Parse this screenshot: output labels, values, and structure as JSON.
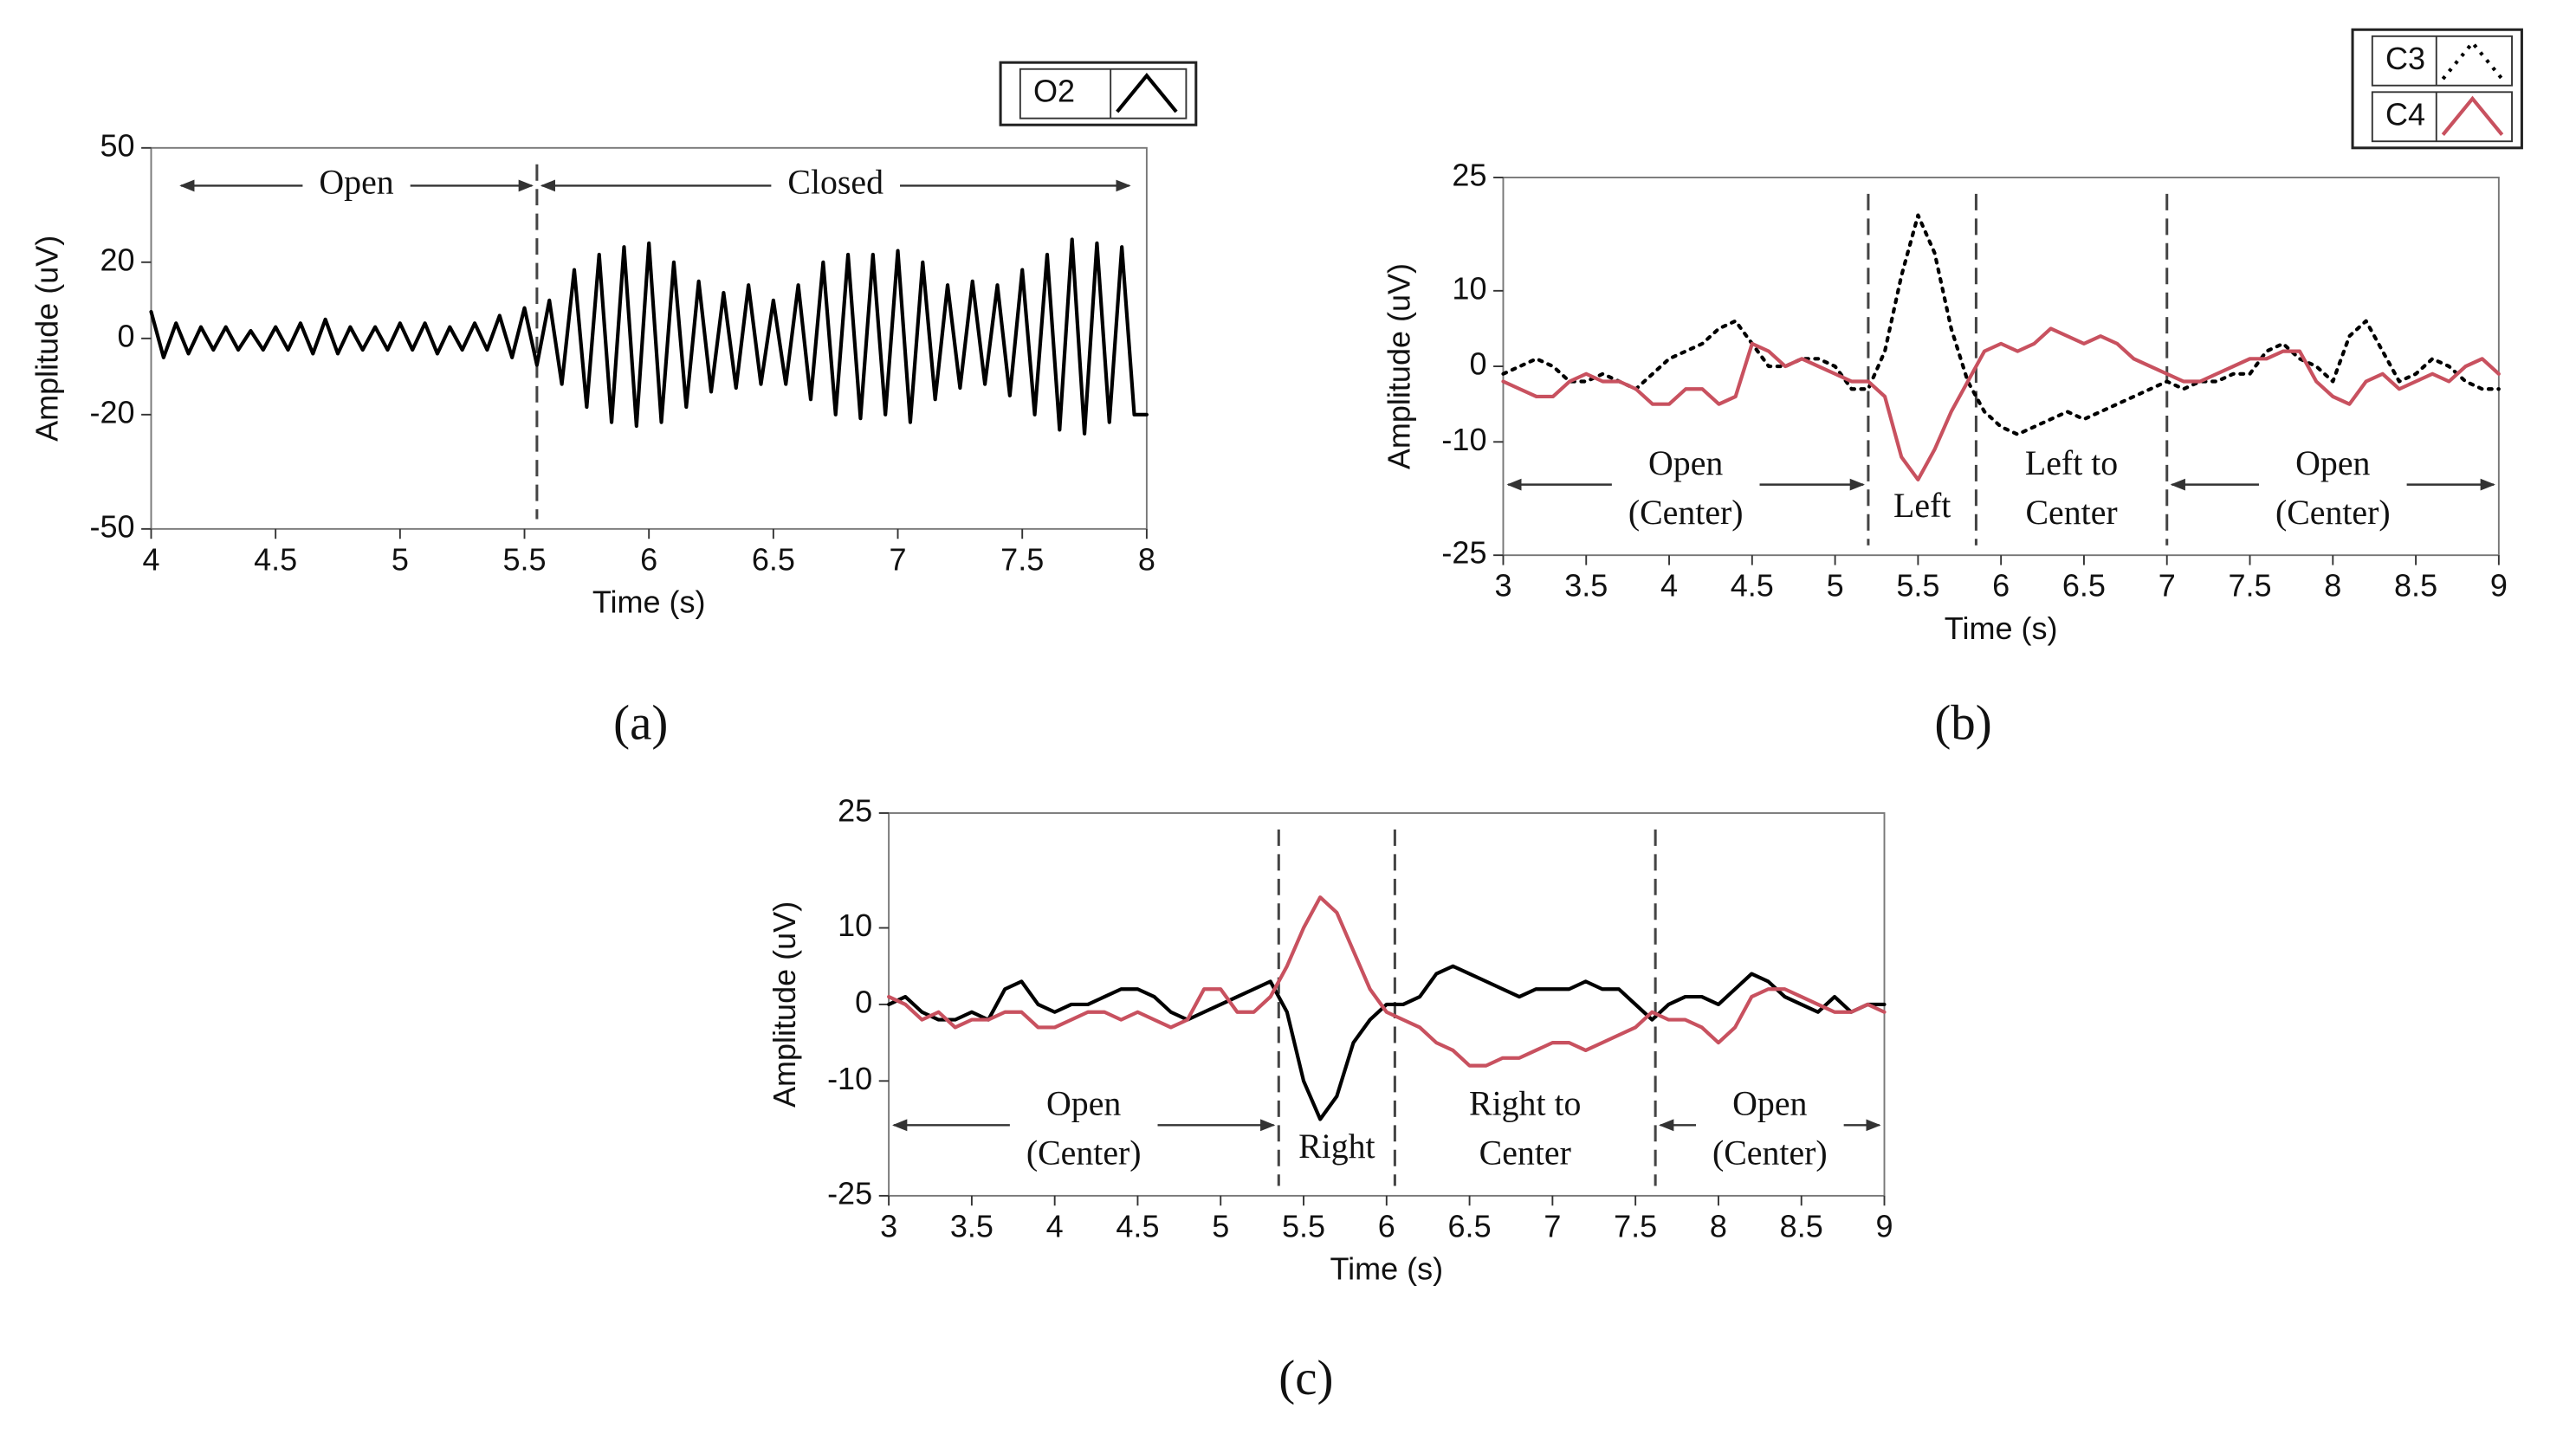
{
  "chart_data": [
    {
      "type": "line",
      "caption": "(a)",
      "xlabel": "Time (s)",
      "ylabel": "Amplitude (uV)",
      "xlim": [
        4,
        8
      ],
      "ylim": [
        -50,
        50
      ],
      "xticks": [
        4,
        4.5,
        5,
        5.5,
        6,
        6.5,
        7,
        7.5,
        8
      ],
      "yticks": [
        -50,
        -20,
        0,
        20,
        50
      ],
      "legend": "outside top right",
      "region_position": "top",
      "markers": [
        5.55
      ],
      "regions": [
        {
          "lines": [
            "Open"
          ],
          "from": 4.1,
          "to": 5.55,
          "arrows": true
        },
        {
          "lines": [
            "Closed"
          ],
          "from": 5.55,
          "to": 7.95,
          "arrows": true
        }
      ],
      "x": [
        4.0,
        4.05,
        4.1,
        4.15,
        4.2,
        4.25,
        4.3,
        4.35,
        4.4,
        4.45,
        4.5,
        4.55,
        4.6,
        4.65,
        4.7,
        4.75,
        4.8,
        4.85,
        4.9,
        4.95,
        5.0,
        5.05,
        5.1,
        5.15,
        5.2,
        5.25,
        5.3,
        5.35,
        5.4,
        5.45,
        5.5,
        5.55,
        5.6,
        5.65,
        5.7,
        5.75,
        5.8,
        5.85,
        5.9,
        5.95,
        6.0,
        6.05,
        6.1,
        6.15,
        6.2,
        6.25,
        6.3,
        6.35,
        6.4,
        6.45,
        6.5,
        6.55,
        6.6,
        6.65,
        6.7,
        6.75,
        6.8,
        6.85,
        6.9,
        6.95,
        7.0,
        7.05,
        7.1,
        7.15,
        7.2,
        7.25,
        7.3,
        7.35,
        7.4,
        7.45,
        7.5,
        7.55,
        7.6,
        7.65,
        7.7,
        7.75,
        7.8,
        7.85,
        7.9,
        7.95,
        8.0
      ],
      "series": [
        {
          "name": "O2",
          "color": "#000000",
          "dash": "solid",
          "values": [
            7,
            -5,
            4,
            -4,
            3,
            -3,
            3,
            -3,
            2,
            -3,
            3,
            -3,
            4,
            -4,
            5,
            -4,
            3,
            -3,
            3,
            -3,
            4,
            -3,
            4,
            -4,
            3,
            -3,
            4,
            -3,
            6,
            -5,
            8,
            -7,
            10,
            -12,
            18,
            -18,
            22,
            -22,
            24,
            -23,
            25,
            -22,
            20,
            -18,
            15,
            -14,
            12,
            -13,
            14,
            -12,
            10,
            -12,
            14,
            -16,
            20,
            -20,
            22,
            -21,
            22,
            -20,
            23,
            -22,
            20,
            -16,
            14,
            -13,
            15,
            -12,
            14,
            -15,
            18,
            -20,
            22,
            -24,
            26,
            -25,
            25,
            -22,
            24,
            -20,
            -20
          ]
        }
      ]
    },
    {
      "type": "line",
      "caption": "(b)",
      "xlabel": "Time (s)",
      "ylabel": "Amplitude (uV)",
      "xlim": [
        3,
        9
      ],
      "ylim": [
        -25,
        25
      ],
      "xticks": [
        3,
        3.5,
        4,
        4.5,
        5,
        5.5,
        6,
        6.5,
        7,
        7.5,
        8,
        8.5,
        9
      ],
      "yticks": [
        -25,
        -10,
        0,
        10,
        25
      ],
      "legend": "outside top right",
      "region_position": "bottom",
      "markers": [
        5.2,
        5.85,
        7.0
      ],
      "regions": [
        {
          "lines": [
            "Open",
            "(Center)"
          ],
          "from": 3,
          "to": 5.2,
          "arrows": true
        },
        {
          "lines": [
            "Left"
          ],
          "from": 5.2,
          "to": 5.85,
          "arrows": false
        },
        {
          "lines": [
            "Left to",
            "Center"
          ],
          "from": 5.85,
          "to": 7.0,
          "arrows": false
        },
        {
          "lines": [
            "Open",
            "(Center)"
          ],
          "from": 7.0,
          "to": 9,
          "arrows": true
        }
      ],
      "x": [
        3.0,
        3.1,
        3.2,
        3.3,
        3.4,
        3.5,
        3.6,
        3.7,
        3.8,
        3.9,
        4.0,
        4.1,
        4.2,
        4.3,
        4.4,
        4.5,
        4.6,
        4.7,
        4.8,
        4.9,
        5.0,
        5.1,
        5.2,
        5.3,
        5.4,
        5.5,
        5.6,
        5.7,
        5.8,
        5.9,
        6.0,
        6.1,
        6.2,
        6.3,
        6.4,
        6.5,
        6.6,
        6.7,
        6.8,
        6.9,
        7.0,
        7.1,
        7.2,
        7.3,
        7.4,
        7.5,
        7.6,
        7.7,
        7.8,
        7.9,
        8.0,
        8.1,
        8.2,
        8.3,
        8.4,
        8.5,
        8.6,
        8.7,
        8.8,
        8.9,
        9.0
      ],
      "series": [
        {
          "name": "C3",
          "color": "#000000",
          "dash": "dotted",
          "values": [
            -1,
            0,
            1,
            0,
            -2,
            -2,
            -1,
            -2,
            -3,
            -1,
            1,
            2,
            3,
            5,
            6,
            3,
            0,
            0,
            1,
            1,
            0,
            -3,
            -3,
            2,
            12,
            20,
            15,
            5,
            -2,
            -6,
            -8,
            -9,
            -8,
            -7,
            -6,
            -7,
            -6,
            -5,
            -4,
            -3,
            -2,
            -3,
            -2,
            -2,
            -1,
            -1,
            2,
            3,
            1,
            0,
            -2,
            4,
            6,
            2,
            -2,
            -1,
            1,
            0,
            -2,
            -3,
            -3
          ]
        },
        {
          "name": "C4",
          "color": "#c8515f",
          "dash": "solid",
          "values": [
            -2,
            -3,
            -4,
            -4,
            -2,
            -1,
            -2,
            -2,
            -3,
            -5,
            -5,
            -3,
            -3,
            -5,
            -4,
            3,
            2,
            0,
            1,
            0,
            -1,
            -2,
            -2,
            -4,
            -12,
            -15,
            -11,
            -6,
            -2,
            2,
            3,
            2,
            3,
            5,
            4,
            3,
            4,
            3,
            1,
            0,
            -1,
            -2,
            -2,
            -1,
            0,
            1,
            1,
            2,
            2,
            -2,
            -4,
            -5,
            -2,
            -1,
            -3,
            -2,
            -1,
            -2,
            0,
            1,
            -1
          ]
        }
      ]
    },
    {
      "type": "line",
      "caption": "(c)",
      "xlabel": "Time (s)",
      "ylabel": "Amplitude (uV)",
      "xlim": [
        3,
        9
      ],
      "ylim": [
        -25,
        25
      ],
      "xticks": [
        3,
        3.5,
        4,
        4.5,
        5,
        5.5,
        6,
        6.5,
        7,
        7.5,
        8,
        8.5,
        9
      ],
      "yticks": [
        -25,
        -10,
        0,
        10,
        25
      ],
      "region_position": "bottom",
      "markers": [
        5.35,
        6.05,
        7.62
      ],
      "regions": [
        {
          "lines": [
            "Open",
            "(Center)"
          ],
          "from": 3,
          "to": 5.35,
          "arrows": true
        },
        {
          "lines": [
            "Right"
          ],
          "from": 5.35,
          "to": 6.05,
          "arrows": false
        },
        {
          "lines": [
            "Right to",
            "Center"
          ],
          "from": 6.05,
          "to": 7.62,
          "arrows": false
        },
        {
          "lines": [
            "Open",
            "(Center)"
          ],
          "from": 7.62,
          "to": 9,
          "arrows": true
        }
      ],
      "x": [
        3.0,
        3.1,
        3.2,
        3.3,
        3.4,
        3.5,
        3.6,
        3.7,
        3.8,
        3.9,
        4.0,
        4.1,
        4.2,
        4.3,
        4.4,
        4.5,
        4.6,
        4.7,
        4.8,
        4.9,
        5.0,
        5.1,
        5.2,
        5.3,
        5.4,
        5.5,
        5.6,
        5.7,
        5.8,
        5.9,
        6.0,
        6.1,
        6.2,
        6.3,
        6.4,
        6.5,
        6.6,
        6.7,
        6.8,
        6.9,
        7.0,
        7.1,
        7.2,
        7.3,
        7.4,
        7.5,
        7.6,
        7.7,
        7.8,
        7.9,
        8.0,
        8.1,
        8.2,
        8.3,
        8.4,
        8.5,
        8.6,
        8.7,
        8.8,
        8.9,
        9.0
      ],
      "series": [
        {
          "color": "#000000",
          "dash": "solid",
          "values": [
            0,
            1,
            -1,
            -2,
            -2,
            -1,
            -2,
            2,
            3,
            0,
            -1,
            0,
            0,
            1,
            2,
            2,
            1,
            -1,
            -2,
            -1,
            0,
            1,
            2,
            3,
            -1,
            -10,
            -15,
            -12,
            -5,
            -2,
            0,
            0,
            1,
            4,
            5,
            4,
            3,
            2,
            1,
            2,
            2,
            2,
            3,
            2,
            2,
            0,
            -2,
            0,
            1,
            1,
            0,
            2,
            4,
            3,
            1,
            0,
            -1,
            1,
            -1,
            0,
            0
          ]
        },
        {
          "color": "#c8515f",
          "dash": "solid",
          "values": [
            1,
            0,
            -2,
            -1,
            -3,
            -2,
            -2,
            -1,
            -1,
            -3,
            -3,
            -2,
            -1,
            -1,
            -2,
            -1,
            -2,
            -3,
            -2,
            2,
            2,
            -1,
            -1,
            1,
            5,
            10,
            14,
            12,
            7,
            2,
            -1,
            -2,
            -3,
            -5,
            -6,
            -8,
            -8,
            -7,
            -7,
            -6,
            -5,
            -5,
            -6,
            -5,
            -4,
            -3,
            -1,
            -2,
            -2,
            -3,
            -5,
            -3,
            1,
            2,
            2,
            1,
            0,
            -1,
            -1,
            0,
            -1
          ]
        }
      ]
    }
  ]
}
